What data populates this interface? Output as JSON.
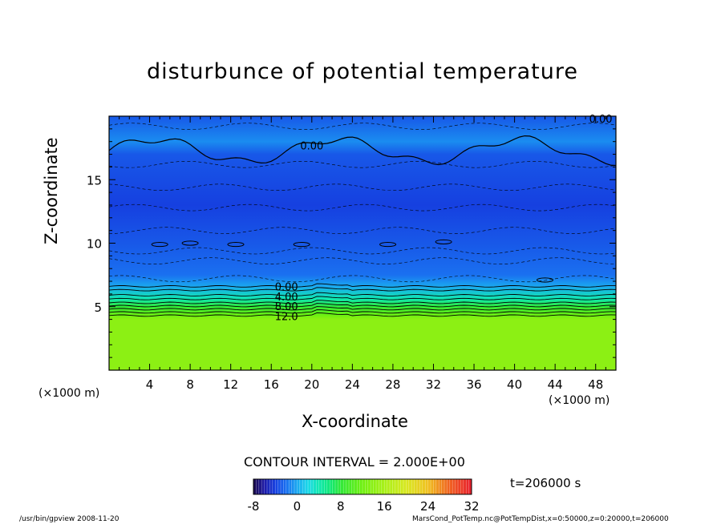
{
  "chart_data": {
    "type": "heatmap",
    "title": "disturbunce of potential temperature",
    "xlabel": "X-coordinate",
    "ylabel": "Z-coordinate",
    "x_unit": "(×1000 m)",
    "xlim": [
      0,
      50
    ],
    "ylim": [
      0,
      20
    ],
    "x_ticks": [
      4,
      8,
      12,
      16,
      20,
      24,
      28,
      32,
      36,
      40,
      44,
      48
    ],
    "y_ticks": [
      5,
      10,
      15
    ],
    "contour_labels": [
      "0.00",
      "4.00",
      "8.00",
      "12.0",
      "0.00",
      "0.00"
    ],
    "contour_interval": "CONTOUR INTERVAL = 2.000E+00",
    "colorbar": {
      "min": -8,
      "max": 32,
      "ticks": [
        -8,
        0,
        8,
        16,
        24,
        32
      ]
    },
    "time_label": "t=206000 s",
    "profile": [
      {
        "z": 0.0,
        "value": 14
      },
      {
        "z": 4.0,
        "value": 14
      },
      {
        "z": 4.3,
        "value": 12
      },
      {
        "z": 5.0,
        "value": 8
      },
      {
        "z": 5.6,
        "value": 4
      },
      {
        "z": 6.6,
        "value": 0
      },
      {
        "z": 7.5,
        "value": -2
      },
      {
        "z": 10.0,
        "value": -3
      },
      {
        "z": 13.0,
        "value": -4
      },
      {
        "z": 17.0,
        "value": -3
      },
      {
        "z": 18.0,
        "value": -1
      },
      {
        "z": 20.0,
        "value": -3
      }
    ]
  },
  "footer": {
    "left": "/usr/bin/gpview   2008-11-20",
    "right": "MarsCond_PotTemp.nc@PotTempDist,x=0:50000,z=0:20000,t=206000"
  },
  "colors": {
    "frame": "#000000",
    "background": "#ffffff"
  }
}
